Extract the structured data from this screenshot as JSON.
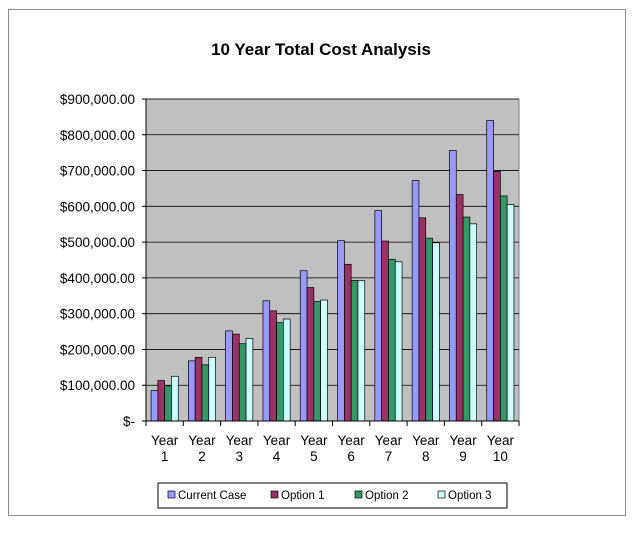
{
  "chart_data": {
    "type": "bar",
    "title": "10 Year Total Cost Analysis",
    "xlabel": "",
    "ylabel": "",
    "ylim": [
      0,
      900000
    ],
    "y_ticks": [
      "$-",
      "$100,000.00",
      "$200,000.00",
      "$300,000.00",
      "$400,000.00",
      "$500,000.00",
      "$600,000.00",
      "$700,000.00",
      "$800,000.00",
      "$900,000.00"
    ],
    "categories": [
      [
        "Year",
        "1"
      ],
      [
        "Year",
        "2"
      ],
      [
        "Year",
        "3"
      ],
      [
        "Year",
        "4"
      ],
      [
        "Year",
        "5"
      ],
      [
        "Year",
        "6"
      ],
      [
        "Year",
        "7"
      ],
      [
        "Year",
        "8"
      ],
      [
        "Year",
        "9"
      ],
      [
        "Year",
        "10"
      ]
    ],
    "series": [
      {
        "name": "Current Case",
        "color": "#9999ff",
        "values": [
          85000,
          168000,
          252000,
          336000,
          420000,
          504000,
          588000,
          672000,
          756000,
          840000
        ]
      },
      {
        "name": "Option 1",
        "color": "#993366",
        "values": [
          113000,
          178000,
          243000,
          308000,
          373000,
          438000,
          503000,
          568000,
          633000,
          698000
        ]
      },
      {
        "name": "Option 2",
        "color": "#339966",
        "values": [
          98000,
          157000,
          216000,
          275000,
          334000,
          393000,
          452000,
          511000,
          570000,
          629000
        ]
      },
      {
        "name": "Option 3",
        "color": "#ccffff",
        "values": [
          125000,
          178000,
          231000,
          285000,
          338000,
          392000,
          445000,
          498000,
          551000,
          605000
        ]
      }
    ],
    "plot_background": "#c0c0c0",
    "grid": true,
    "legend": "bottom"
  }
}
